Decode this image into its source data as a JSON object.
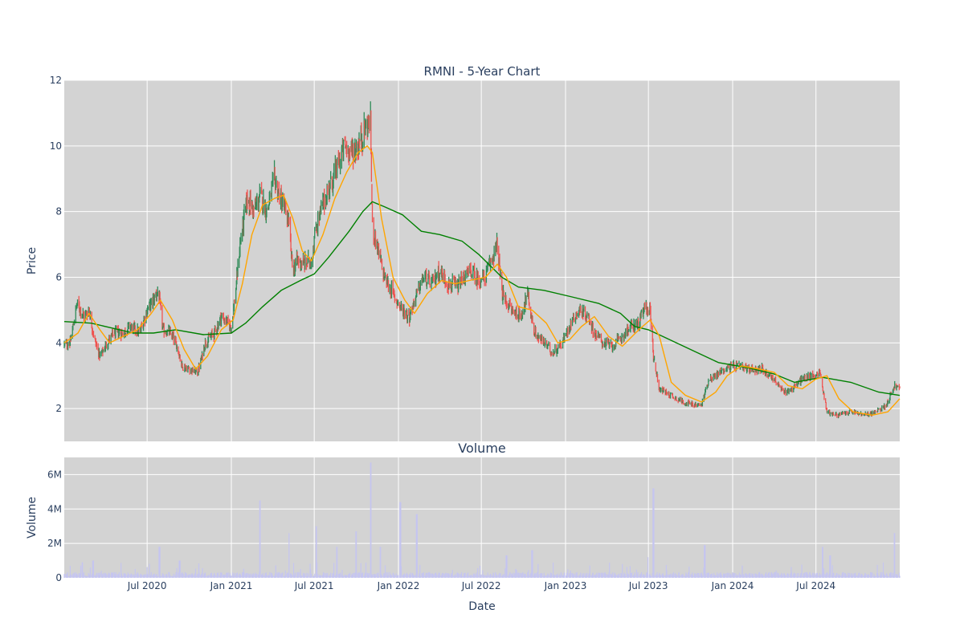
{
  "chart_data": [
    {
      "type": "candlestick",
      "title": "RMNI - 5-Year Chart",
      "ylabel": "Price",
      "ylim": [
        1,
        12
      ],
      "yticks": [
        2,
        4,
        6,
        8,
        10,
        12
      ],
      "x_range": [
        "2020-01-02",
        "2024-12-31"
      ],
      "xtick_labels": [
        "Jul 2020",
        "Jan 2021",
        "Jul 2021",
        "Jan 2022",
        "Jul 2022",
        "Jan 2023",
        "Jul 2023",
        "Jan 2024",
        "Jul 2024"
      ],
      "xtick_dates": [
        "2020-07-01",
        "2021-01-01",
        "2021-07-01",
        "2022-01-01",
        "2022-07-01",
        "2023-01-01",
        "2023-07-01",
        "2024-01-01",
        "2024-07-01"
      ],
      "grid": true,
      "colors": {
        "increasing": "#2e8b57",
        "decreasing": "#ef5350",
        "ma_short": "#ffa500",
        "ma_long": "#008000",
        "plot_bg": "#d3d3d3"
      },
      "close_path": [
        [
          "2020-01-02",
          3.95
        ],
        [
          "2020-01-15",
          4.0
        ],
        [
          "2020-01-30",
          5.2
        ],
        [
          "2020-02-15",
          4.8
        ],
        [
          "2020-02-25",
          5.0
        ],
        [
          "2020-03-10",
          4.0
        ],
        [
          "2020-03-20",
          3.6
        ],
        [
          "2020-04-05",
          4.0
        ],
        [
          "2020-04-20",
          4.3
        ],
        [
          "2020-05-10",
          4.3
        ],
        [
          "2020-05-25",
          4.5
        ],
        [
          "2020-06-15",
          4.3
        ],
        [
          "2020-07-01",
          5.0
        ],
        [
          "2020-07-15",
          5.3
        ],
        [
          "2020-07-25",
          5.6
        ],
        [
          "2020-08-05",
          4.4
        ],
        [
          "2020-08-20",
          4.3
        ],
        [
          "2020-09-05",
          3.9
        ],
        [
          "2020-09-15",
          3.3
        ],
        [
          "2020-10-01",
          3.2
        ],
        [
          "2020-10-20",
          3.1
        ],
        [
          "2020-11-05",
          4.0
        ],
        [
          "2020-11-25",
          4.3
        ],
        [
          "2020-12-10",
          4.8
        ],
        [
          "2021-01-01",
          4.5
        ],
        [
          "2021-01-10",
          5.5
        ],
        [
          "2021-01-20",
          7.0
        ],
        [
          "2021-02-05",
          8.4
        ],
        [
          "2021-02-20",
          8.0
        ],
        [
          "2021-03-05",
          8.5
        ],
        [
          "2021-03-20",
          8.0
        ],
        [
          "2021-04-05",
          9.0
        ],
        [
          "2021-04-20",
          8.3
        ],
        [
          "2021-05-05",
          7.8
        ],
        [
          "2021-05-15",
          6.2
        ],
        [
          "2021-05-25",
          6.5
        ],
        [
          "2021-06-10",
          6.4
        ],
        [
          "2021-06-25",
          6.5
        ],
        [
          "2021-07-05",
          7.5
        ],
        [
          "2021-07-20",
          8.2
        ],
        [
          "2021-08-05",
          8.8
        ],
        [
          "2021-08-20",
          9.3
        ],
        [
          "2021-09-05",
          10.0
        ],
        [
          "2021-09-20",
          9.8
        ],
        [
          "2021-10-05",
          10.0
        ],
        [
          "2021-10-20",
          10.5
        ],
        [
          "2021-11-01",
          10.8
        ],
        [
          "2021-11-05",
          7.5
        ],
        [
          "2021-11-15",
          7.0
        ],
        [
          "2021-12-01",
          6.0
        ],
        [
          "2021-12-20",
          5.5
        ],
        [
          "2022-01-10",
          5.0
        ],
        [
          "2022-01-25",
          4.8
        ],
        [
          "2022-02-10",
          5.5
        ],
        [
          "2022-02-25",
          6.0
        ],
        [
          "2022-03-15",
          5.8
        ],
        [
          "2022-04-01",
          6.2
        ],
        [
          "2022-04-20",
          5.8
        ],
        [
          "2022-05-10",
          5.7
        ],
        [
          "2022-05-25",
          6.0
        ],
        [
          "2022-06-10",
          6.2
        ],
        [
          "2022-06-25",
          5.9
        ],
        [
          "2022-07-10",
          6.0
        ],
        [
          "2022-07-25",
          6.6
        ],
        [
          "2022-08-05",
          7.0
        ],
        [
          "2022-08-15",
          5.5
        ],
        [
          "2022-09-05",
          5.0
        ],
        [
          "2022-09-25",
          4.8
        ],
        [
          "2022-10-10",
          5.5
        ],
        [
          "2022-10-25",
          4.3
        ],
        [
          "2022-11-15",
          4.0
        ],
        [
          "2022-12-05",
          3.7
        ],
        [
          "2022-12-25",
          4.0
        ],
        [
          "2023-01-15",
          4.7
        ],
        [
          "2023-02-01",
          5.0
        ],
        [
          "2023-02-20",
          4.8
        ],
        [
          "2023-03-05",
          4.3
        ],
        [
          "2023-03-25",
          4.0
        ],
        [
          "2023-04-15",
          3.9
        ],
        [
          "2023-05-05",
          4.2
        ],
        [
          "2023-05-25",
          4.5
        ],
        [
          "2023-06-10",
          4.6
        ],
        [
          "2023-06-25",
          5.1
        ],
        [
          "2023-07-05",
          5.0
        ],
        [
          "2023-07-12",
          3.6
        ],
        [
          "2023-07-25",
          2.6
        ],
        [
          "2023-08-20",
          2.4
        ],
        [
          "2023-09-15",
          2.2
        ],
        [
          "2023-10-10",
          2.1
        ],
        [
          "2023-10-25",
          2.1
        ],
        [
          "2023-11-10",
          2.9
        ],
        [
          "2023-11-25",
          3.0
        ],
        [
          "2023-12-15",
          3.2
        ],
        [
          "2024-01-05",
          3.3
        ],
        [
          "2024-02-05",
          3.2
        ],
        [
          "2024-03-05",
          3.2
        ],
        [
          "2024-04-01",
          2.9
        ],
        [
          "2024-04-20",
          2.5
        ],
        [
          "2024-05-10",
          2.6
        ],
        [
          "2024-06-01",
          2.9
        ],
        [
          "2024-06-25",
          3.0
        ],
        [
          "2024-07-10",
          3.1
        ],
        [
          "2024-07-25",
          1.9
        ],
        [
          "2024-08-15",
          1.8
        ],
        [
          "2024-09-15",
          1.9
        ],
        [
          "2024-10-15",
          1.8
        ],
        [
          "2024-11-10",
          1.9
        ],
        [
          "2024-12-01",
          2.1
        ],
        [
          "2024-12-20",
          2.7
        ],
        [
          "2024-12-31",
          2.6
        ]
      ],
      "ma_short_path": [
        [
          "2020-01-02",
          4.0
        ],
        [
          "2020-02-01",
          4.3
        ],
        [
          "2020-02-25",
          4.9
        ],
        [
          "2020-03-20",
          4.4
        ],
        [
          "2020-04-10",
          4.0
        ],
        [
          "2020-05-10",
          4.2
        ],
        [
          "2020-06-10",
          4.4
        ],
        [
          "2020-07-10",
          4.9
        ],
        [
          "2020-07-30",
          5.3
        ],
        [
          "2020-08-25",
          4.7
        ],
        [
          "2020-09-20",
          3.8
        ],
        [
          "2020-10-15",
          3.2
        ],
        [
          "2020-11-10",
          3.6
        ],
        [
          "2020-12-10",
          4.4
        ],
        [
          "2021-01-05",
          4.7
        ],
        [
          "2021-01-25",
          5.8
        ],
        [
          "2021-02-15",
          7.3
        ],
        [
          "2021-03-10",
          8.2
        ],
        [
          "2021-04-05",
          8.4
        ],
        [
          "2021-04-25",
          8.5
        ],
        [
          "2021-05-15",
          7.8
        ],
        [
          "2021-06-05",
          6.8
        ],
        [
          "2021-06-25",
          6.5
        ],
        [
          "2021-07-20",
          7.3
        ],
        [
          "2021-08-15",
          8.4
        ],
        [
          "2021-09-10",
          9.2
        ],
        [
          "2021-10-05",
          9.8
        ],
        [
          "2021-10-25",
          10.0
        ],
        [
          "2021-11-05",
          9.8
        ],
        [
          "2021-11-25",
          7.8
        ],
        [
          "2021-12-20",
          6.0
        ],
        [
          "2022-01-15",
          5.3
        ],
        [
          "2022-02-05",
          4.9
        ],
        [
          "2022-03-05",
          5.5
        ],
        [
          "2022-04-05",
          5.9
        ],
        [
          "2022-05-05",
          5.8
        ],
        [
          "2022-06-05",
          5.9
        ],
        [
          "2022-07-10",
          6.0
        ],
        [
          "2022-08-05",
          6.4
        ],
        [
          "2022-08-25",
          6.0
        ],
        [
          "2022-09-20",
          5.1
        ],
        [
          "2022-10-20",
          5.0
        ],
        [
          "2022-11-20",
          4.6
        ],
        [
          "2022-12-15",
          4.0
        ],
        [
          "2023-01-10",
          4.1
        ],
        [
          "2023-02-05",
          4.5
        ],
        [
          "2023-03-05",
          4.8
        ],
        [
          "2023-04-05",
          4.2
        ],
        [
          "2023-05-05",
          3.9
        ],
        [
          "2023-06-10",
          4.4
        ],
        [
          "2023-07-05",
          4.7
        ],
        [
          "2023-07-25",
          4.2
        ],
        [
          "2023-08-20",
          2.8
        ],
        [
          "2023-09-20",
          2.4
        ],
        [
          "2023-10-25",
          2.2
        ],
        [
          "2023-11-25",
          2.5
        ],
        [
          "2023-12-20",
          3.0
        ],
        [
          "2024-01-20",
          3.3
        ],
        [
          "2024-03-01",
          3.2
        ],
        [
          "2024-04-01",
          3.1
        ],
        [
          "2024-05-01",
          2.7
        ],
        [
          "2024-06-01",
          2.6
        ],
        [
          "2024-07-01",
          2.9
        ],
        [
          "2024-07-25",
          3.0
        ],
        [
          "2024-08-20",
          2.3
        ],
        [
          "2024-09-20",
          1.9
        ],
        [
          "2024-11-01",
          1.8
        ],
        [
          "2024-12-05",
          1.9
        ],
        [
          "2024-12-31",
          2.3
        ]
      ],
      "ma_long_path": [
        [
          "2020-01-02",
          4.65
        ],
        [
          "2020-03-01",
          4.6
        ],
        [
          "2020-06-01",
          4.3
        ],
        [
          "2020-07-15",
          4.3
        ],
        [
          "2020-09-01",
          4.4
        ],
        [
          "2020-11-01",
          4.25
        ],
        [
          "2021-01-01",
          4.3
        ],
        [
          "2021-02-01",
          4.6
        ],
        [
          "2021-03-10",
          5.1
        ],
        [
          "2021-04-20",
          5.6
        ],
        [
          "2021-06-01",
          5.9
        ],
        [
          "2021-07-01",
          6.1
        ],
        [
          "2021-08-01",
          6.6
        ],
        [
          "2021-09-15",
          7.4
        ],
        [
          "2021-10-15",
          8.0
        ],
        [
          "2021-11-05",
          8.3
        ],
        [
          "2021-12-01",
          8.15
        ],
        [
          "2022-01-10",
          7.9
        ],
        [
          "2022-02-20",
          7.4
        ],
        [
          "2022-04-01",
          7.3
        ],
        [
          "2022-05-20",
          7.1
        ],
        [
          "2022-06-25",
          6.7
        ],
        [
          "2022-08-15",
          6.0
        ],
        [
          "2022-09-20",
          5.7
        ],
        [
          "2022-11-15",
          5.6
        ],
        [
          "2023-01-15",
          5.4
        ],
        [
          "2023-03-15",
          5.2
        ],
        [
          "2023-05-01",
          4.9
        ],
        [
          "2023-06-01",
          4.5
        ],
        [
          "2023-07-01",
          4.4
        ],
        [
          "2023-08-01",
          4.2
        ],
        [
          "2023-10-01",
          3.8
        ],
        [
          "2023-12-01",
          3.4
        ],
        [
          "2024-02-01",
          3.25
        ],
        [
          "2024-04-01",
          3.05
        ],
        [
          "2024-05-15",
          2.8
        ],
        [
          "2024-07-15",
          2.95
        ],
        [
          "2024-09-15",
          2.8
        ],
        [
          "2024-11-15",
          2.5
        ],
        [
          "2024-12-31",
          2.4
        ]
      ]
    },
    {
      "type": "bar",
      "title": "Volume",
      "xlabel": "Date",
      "ylabel": "Volume",
      "ylim": [
        0,
        7000000
      ],
      "ytick_values": [
        0,
        2000000,
        4000000,
        6000000
      ],
      "ytick_labels": [
        "0",
        "2M",
        "4M",
        "6M"
      ],
      "grid": true,
      "bar_color": "#c5c5f0",
      "spikes": [
        [
          "2020-02-10",
          900000
        ],
        [
          "2020-03-05",
          1000000
        ],
        [
          "2020-07-28",
          1800000
        ],
        [
          "2020-09-10",
          1000000
        ],
        [
          "2021-03-05",
          4500000
        ],
        [
          "2021-05-08",
          2600000
        ],
        [
          "2021-07-05",
          3000000
        ],
        [
          "2021-08-20",
          1800000
        ],
        [
          "2021-10-01",
          2700000
        ],
        [
          "2021-11-01",
          6700000
        ],
        [
          "2021-11-22",
          1800000
        ],
        [
          "2022-01-05",
          4400000
        ],
        [
          "2022-02-10",
          3700000
        ],
        [
          "2022-08-25",
          1300000
        ],
        [
          "2022-10-20",
          1600000
        ],
        [
          "2023-07-01",
          1200000
        ],
        [
          "2023-07-12",
          5200000
        ],
        [
          "2023-11-01",
          1900000
        ],
        [
          "2024-07-15",
          1800000
        ],
        [
          "2024-08-01",
          1300000
        ],
        [
          "2024-12-20",
          2600000
        ]
      ]
    }
  ]
}
